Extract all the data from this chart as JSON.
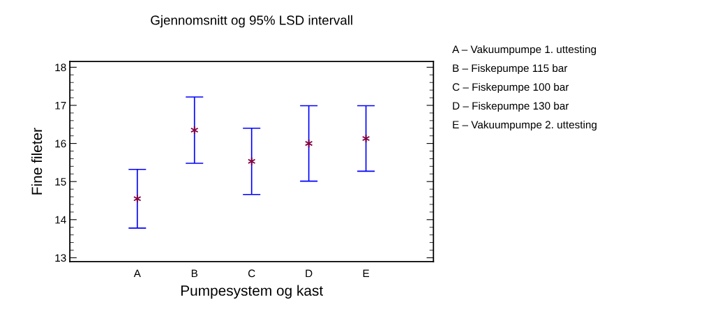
{
  "chart_data": {
    "type": "scatter",
    "title": "Gjennomsnitt og 95% LSD intervall",
    "xlabel": "Pumpesystem og kast",
    "ylabel": "Fine fileter",
    "categories": [
      "A",
      "B",
      "C",
      "D",
      "E"
    ],
    "series": [
      {
        "color": "#800040",
        "values": [
          14.55,
          16.35,
          15.53,
          16.0,
          16.13
        ],
        "errors": [
          0.77,
          0.87,
          0.87,
          0.99,
          0.86
        ]
      }
    ],
    "ylim": [
      12.9,
      18.15
    ],
    "yticks": [
      13,
      14,
      15,
      16,
      17,
      18
    ],
    "marker": "cross",
    "grid": false,
    "legend": false,
    "annotations": [
      "A – Vakuumpumpe 1. uttesting",
      "B – Fiskepumpe 115 bar",
      "C – Fiskepumpe 100 bar",
      "D – Fiskepumpe 130 bar",
      "E – Vakuumpumpe 2. uttesting"
    ]
  }
}
